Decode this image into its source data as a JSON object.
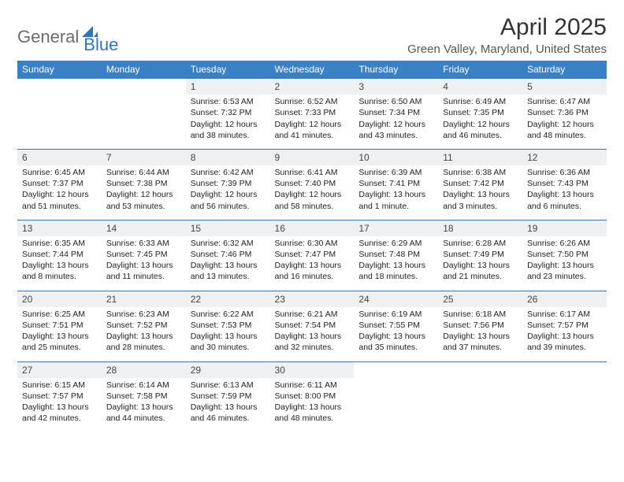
{
  "logo": {
    "part1": "General",
    "part2": "Blue"
  },
  "title": "April 2025",
  "location": "Green Valley, Maryland, United States",
  "colors": {
    "header_bg": "#3a80c4",
    "header_text": "#ffffff",
    "daynum_bg": "#eef0f1",
    "rule": "#2f76b8",
    "logo_gray": "#6b6b6b",
    "logo_blue": "#2f76b8",
    "page_bg": "#ffffff"
  },
  "dayNames": [
    "Sunday",
    "Monday",
    "Tuesday",
    "Wednesday",
    "Thursday",
    "Friday",
    "Saturday"
  ],
  "weeks": [
    {
      "nums": [
        "",
        "",
        "1",
        "2",
        "3",
        "4",
        "5"
      ],
      "cells": [
        "",
        "",
        "Sunrise: 6:53 AM\nSunset: 7:32 PM\nDaylight: 12 hours and 38 minutes.",
        "Sunrise: 6:52 AM\nSunset: 7:33 PM\nDaylight: 12 hours and 41 minutes.",
        "Sunrise: 6:50 AM\nSunset: 7:34 PM\nDaylight: 12 hours and 43 minutes.",
        "Sunrise: 6:49 AM\nSunset: 7:35 PM\nDaylight: 12 hours and 46 minutes.",
        "Sunrise: 6:47 AM\nSunset: 7:36 PM\nDaylight: 12 hours and 48 minutes."
      ]
    },
    {
      "nums": [
        "6",
        "7",
        "8",
        "9",
        "10",
        "11",
        "12"
      ],
      "cells": [
        "Sunrise: 6:45 AM\nSunset: 7:37 PM\nDaylight: 12 hours and 51 minutes.",
        "Sunrise: 6:44 AM\nSunset: 7:38 PM\nDaylight: 12 hours and 53 minutes.",
        "Sunrise: 6:42 AM\nSunset: 7:39 PM\nDaylight: 12 hours and 56 minutes.",
        "Sunrise: 6:41 AM\nSunset: 7:40 PM\nDaylight: 12 hours and 58 minutes.",
        "Sunrise: 6:39 AM\nSunset: 7:41 PM\nDaylight: 13 hours and 1 minute.",
        "Sunrise: 6:38 AM\nSunset: 7:42 PM\nDaylight: 13 hours and 3 minutes.",
        "Sunrise: 6:36 AM\nSunset: 7:43 PM\nDaylight: 13 hours and 6 minutes."
      ]
    },
    {
      "nums": [
        "13",
        "14",
        "15",
        "16",
        "17",
        "18",
        "19"
      ],
      "cells": [
        "Sunrise: 6:35 AM\nSunset: 7:44 PM\nDaylight: 13 hours and 8 minutes.",
        "Sunrise: 6:33 AM\nSunset: 7:45 PM\nDaylight: 13 hours and 11 minutes.",
        "Sunrise: 6:32 AM\nSunset: 7:46 PM\nDaylight: 13 hours and 13 minutes.",
        "Sunrise: 6:30 AM\nSunset: 7:47 PM\nDaylight: 13 hours and 16 minutes.",
        "Sunrise: 6:29 AM\nSunset: 7:48 PM\nDaylight: 13 hours and 18 minutes.",
        "Sunrise: 6:28 AM\nSunset: 7:49 PM\nDaylight: 13 hours and 21 minutes.",
        "Sunrise: 6:26 AM\nSunset: 7:50 PM\nDaylight: 13 hours and 23 minutes."
      ]
    },
    {
      "nums": [
        "20",
        "21",
        "22",
        "23",
        "24",
        "25",
        "26"
      ],
      "cells": [
        "Sunrise: 6:25 AM\nSunset: 7:51 PM\nDaylight: 13 hours and 25 minutes.",
        "Sunrise: 6:23 AM\nSunset: 7:52 PM\nDaylight: 13 hours and 28 minutes.",
        "Sunrise: 6:22 AM\nSunset: 7:53 PM\nDaylight: 13 hours and 30 minutes.",
        "Sunrise: 6:21 AM\nSunset: 7:54 PM\nDaylight: 13 hours and 32 minutes.",
        "Sunrise: 6:19 AM\nSunset: 7:55 PM\nDaylight: 13 hours and 35 minutes.",
        "Sunrise: 6:18 AM\nSunset: 7:56 PM\nDaylight: 13 hours and 37 minutes.",
        "Sunrise: 6:17 AM\nSunset: 7:57 PM\nDaylight: 13 hours and 39 minutes."
      ]
    },
    {
      "nums": [
        "27",
        "28",
        "29",
        "30",
        "",
        "",
        ""
      ],
      "cells": [
        "Sunrise: 6:15 AM\nSunset: 7:57 PM\nDaylight: 13 hours and 42 minutes.",
        "Sunrise: 6:14 AM\nSunset: 7:58 PM\nDaylight: 13 hours and 44 minutes.",
        "Sunrise: 6:13 AM\nSunset: 7:59 PM\nDaylight: 13 hours and 46 minutes.",
        "Sunrise: 6:11 AM\nSunset: 8:00 PM\nDaylight: 13 hours and 48 minutes.",
        "",
        "",
        ""
      ]
    }
  ]
}
